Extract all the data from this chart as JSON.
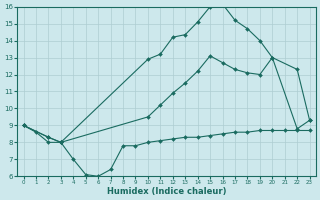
{
  "xlabel": "Humidex (Indice chaleur)",
  "background_color": "#cde8ec",
  "line_color": "#1a6b60",
  "grid_color": "#aecdd2",
  "xlim": [
    -0.5,
    23.5
  ],
  "ylim": [
    6,
    16
  ],
  "xticks": [
    0,
    1,
    2,
    3,
    4,
    5,
    6,
    7,
    8,
    9,
    10,
    11,
    12,
    13,
    14,
    15,
    16,
    17,
    18,
    19,
    20,
    21,
    22,
    23
  ],
  "yticks": [
    6,
    7,
    8,
    9,
    10,
    11,
    12,
    13,
    14,
    15,
    16
  ],
  "line1_x": [
    0,
    1,
    2,
    3,
    4,
    5,
    6,
    7,
    8,
    9,
    10,
    11,
    12,
    13,
    14,
    15,
    16,
    17,
    18,
    19,
    20,
    21,
    22,
    23
  ],
  "line1_y": [
    9.0,
    8.6,
    8.0,
    8.0,
    7.0,
    6.1,
    6.0,
    6.4,
    7.8,
    7.8,
    8.0,
    8.1,
    8.2,
    8.3,
    8.3,
    8.4,
    8.5,
    8.6,
    8.6,
    8.7,
    8.7,
    8.7,
    8.7,
    8.7
  ],
  "line2_x": [
    0,
    2,
    3,
    10,
    11,
    12,
    13,
    14,
    15,
    16,
    17,
    18,
    19,
    20,
    22,
    23
  ],
  "line2_y": [
    9.0,
    8.3,
    8.0,
    9.5,
    10.2,
    10.9,
    11.5,
    12.2,
    13.1,
    12.7,
    12.3,
    12.1,
    12.0,
    13.0,
    12.3,
    9.3
  ],
  "line3_x": [
    0,
    2,
    3,
    10,
    11,
    12,
    13,
    14,
    15,
    16,
    17,
    18,
    19,
    20,
    22,
    23
  ],
  "line3_y": [
    9.0,
    8.3,
    8.0,
    12.9,
    13.2,
    14.2,
    14.35,
    15.1,
    16.0,
    16.15,
    15.2,
    14.7,
    14.0,
    13.0,
    8.8,
    9.3
  ]
}
